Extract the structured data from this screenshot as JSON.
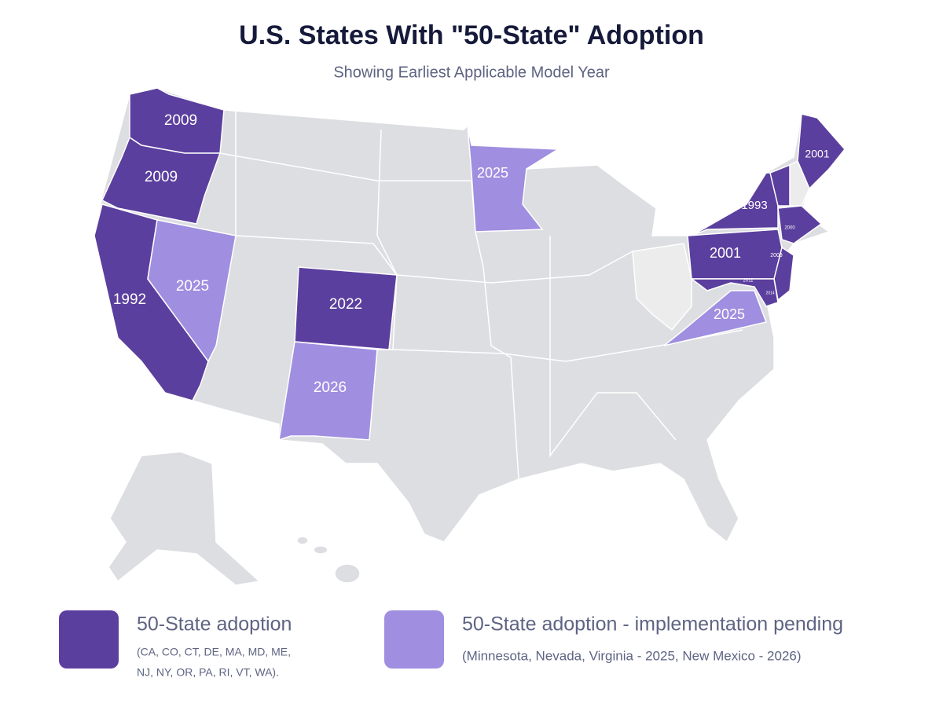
{
  "header": {
    "title": "U.S. States With \"50-State\" Adoption",
    "subtitle": "Showing Earliest Applicable Model Year"
  },
  "map": {
    "state_labels": [
      "2009",
      "2009",
      "1992",
      "2025",
      "2022",
      "2026",
      "2025",
      "2001",
      "1993",
      "2000",
      "2001",
      "2009",
      "2011",
      "2014",
      "2025"
    ]
  },
  "legend": {
    "items": [
      {
        "label": "50-State adoption",
        "note": "(CA, CO, CT, DE, MA, MD, ME,",
        "note2": "NJ, NY, OR, PA, RI, VT, WA).",
        "color": "#5b3f9e"
      },
      {
        "label": "50-State adoption - implementation pending",
        "note": "(Minnesota, Nevada, Virginia - 2025, New Mexico - 2026)",
        "color": "#a08ee0"
      }
    ]
  }
}
